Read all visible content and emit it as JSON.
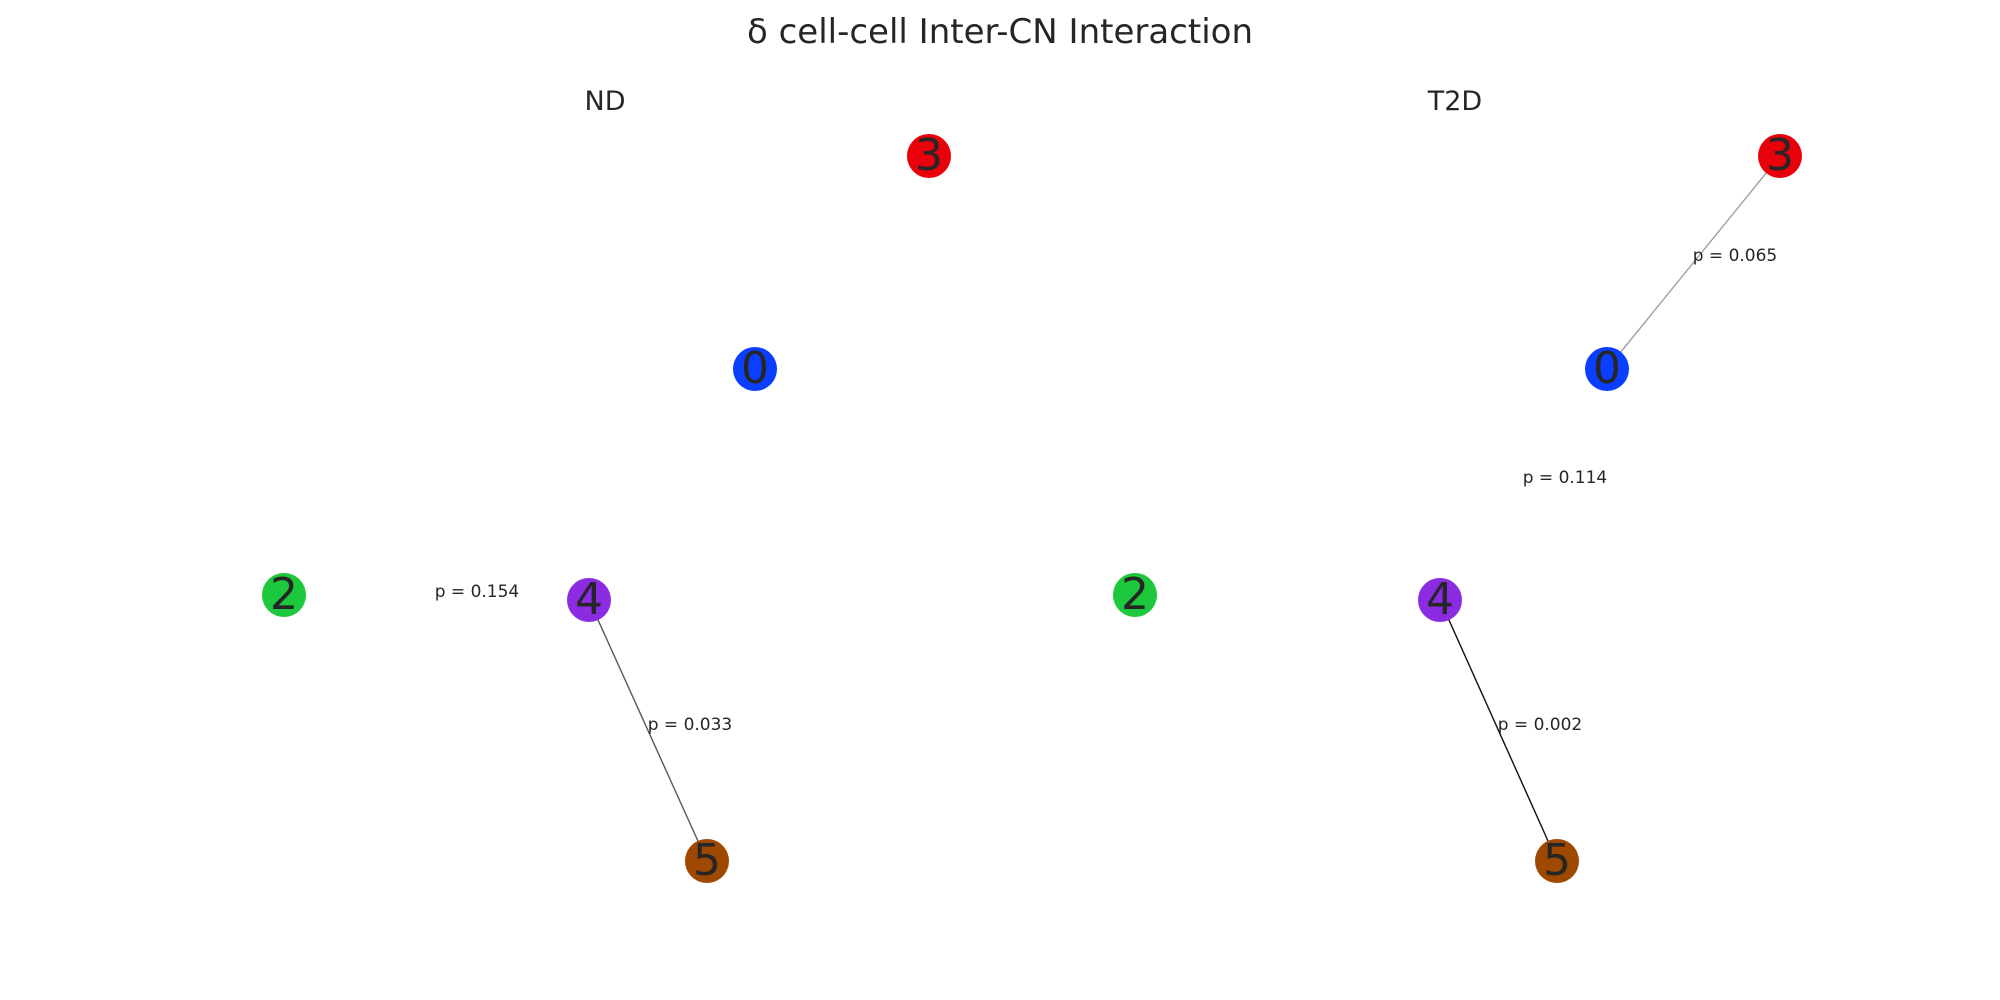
{
  "title": "δ cell-cell Inter-CN Interaction",
  "panels": [
    {
      "title": "ND",
      "nodes": [
        {
          "id": "0",
          "label": "0",
          "color": "#0a3fff"
        },
        {
          "id": "2",
          "label": "2",
          "color": "#1dc83c"
        },
        {
          "id": "3",
          "label": "3",
          "color": "#e8000b"
        },
        {
          "id": "4",
          "label": "4",
          "color": "#8b2be2"
        },
        {
          "id": "5",
          "label": "5",
          "color": "#9f4800"
        }
      ],
      "edges": [
        {
          "source": "4",
          "target": "5",
          "label": "p = 0.033",
          "p": 0.033,
          "color": "#595959"
        }
      ],
      "floating_labels": [
        {
          "label": "p = 0.154",
          "p": 0.154
        }
      ]
    },
    {
      "title": "T2D",
      "nodes": [
        {
          "id": "0",
          "label": "0",
          "color": "#0a3fff"
        },
        {
          "id": "2",
          "label": "2",
          "color": "#1dc83c"
        },
        {
          "id": "3",
          "label": "3",
          "color": "#e8000b"
        },
        {
          "id": "4",
          "label": "4",
          "color": "#8b2be2"
        },
        {
          "id": "5",
          "label": "5",
          "color": "#9f4800"
        }
      ],
      "edges": [
        {
          "source": "0",
          "target": "3",
          "label": "p = 0.065",
          "p": 0.065,
          "color": "#a0a0a0"
        },
        {
          "source": "4",
          "target": "5",
          "label": "p = 0.002",
          "p": 0.002,
          "color": "#111111"
        }
      ],
      "floating_labels": [
        {
          "label": "p = 0.114",
          "p": 0.114
        }
      ]
    }
  ]
}
